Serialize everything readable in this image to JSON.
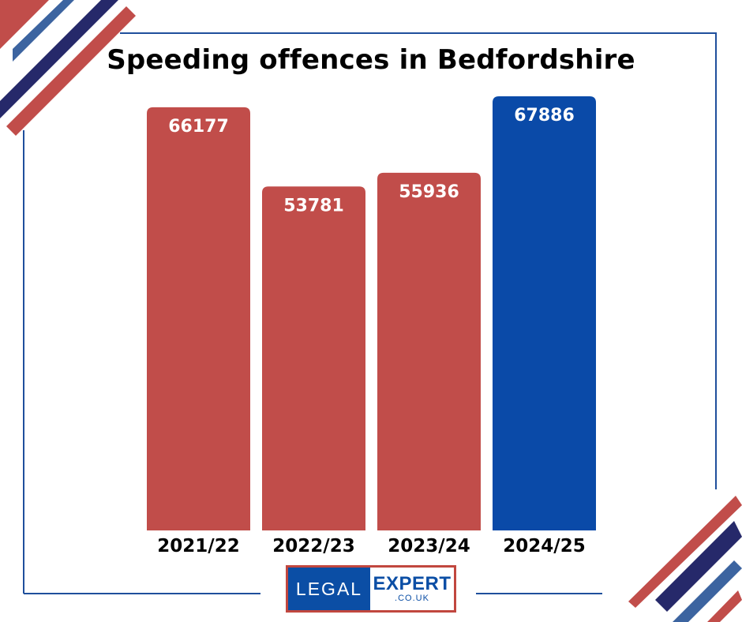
{
  "chart_data": {
    "type": "bar",
    "title": "Speeding offences in Bedfordshire",
    "categories": [
      "2021/22",
      "2022/23",
      "2023/24",
      "2024/25"
    ],
    "values": [
      66177,
      53781,
      55936,
      67886
    ],
    "value_labels": [
      "66177",
      "53781",
      "55936",
      "67886"
    ],
    "bar_colors": [
      "#c14d4a",
      "#c14d4a",
      "#c14d4a",
      "#0a4aa8"
    ],
    "ylim": [
      0,
      67886
    ],
    "grid": false,
    "legend": "none"
  },
  "logo": {
    "left_text": "LEGAL",
    "right_text": "EXPERT",
    "domain": ".CO.UK"
  },
  "colors": {
    "accent_red": "#c14d4a",
    "accent_blue": "#0a4aa8",
    "deco_blue": "#3c64a0",
    "deco_navy": "#26296a",
    "frame": "#1f4f9c"
  }
}
